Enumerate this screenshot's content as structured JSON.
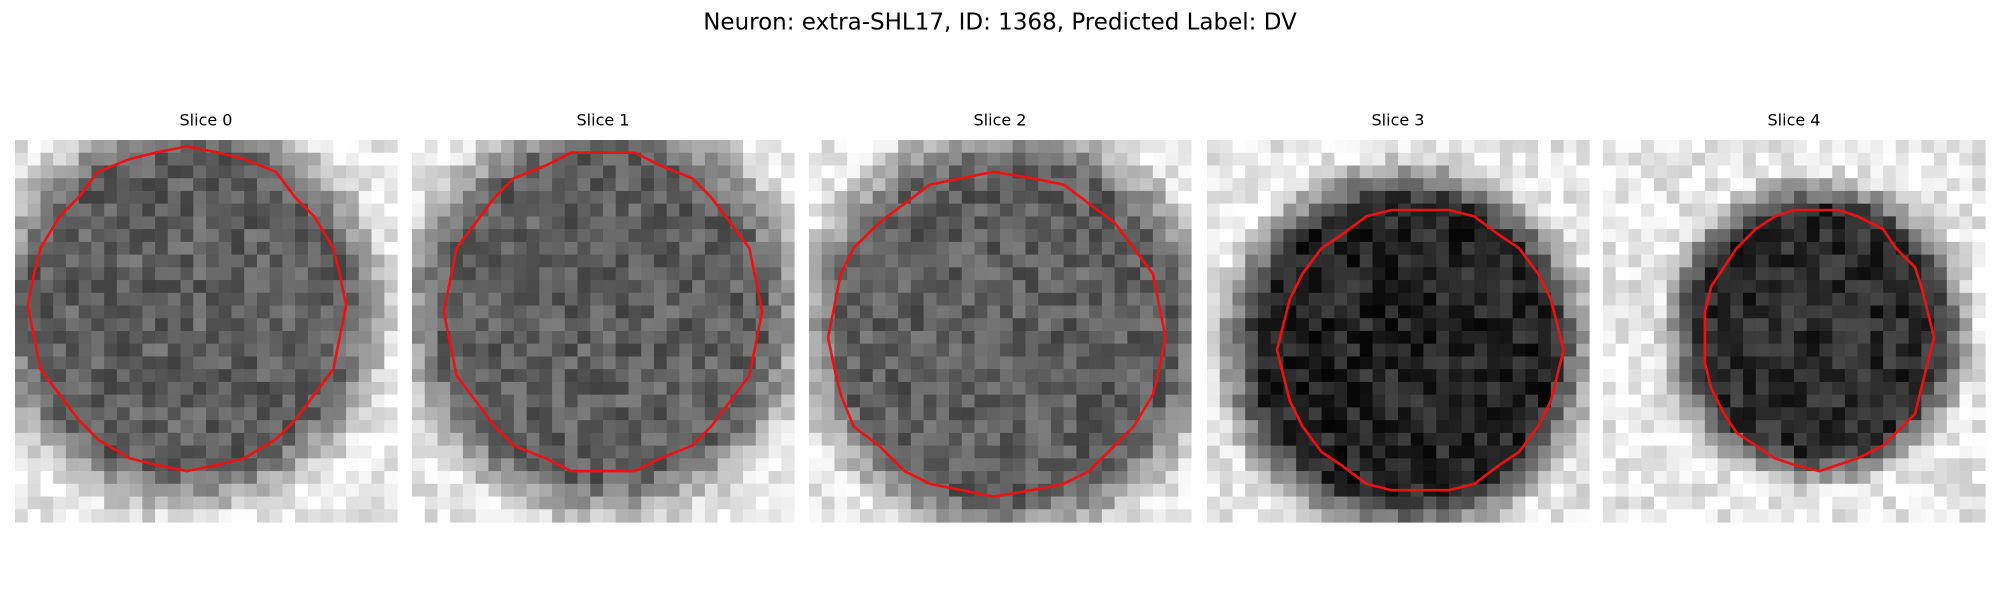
{
  "title": "Neuron: extra-SHL17, ID: 1368, Predicted Label: DV",
  "panels": [
    {
      "label": "Slice 0"
    },
    {
      "label": "Slice 1"
    },
    {
      "label": "Slice 2"
    },
    {
      "label": "Slice 3"
    },
    {
      "label": "Slice 4"
    }
  ]
}
